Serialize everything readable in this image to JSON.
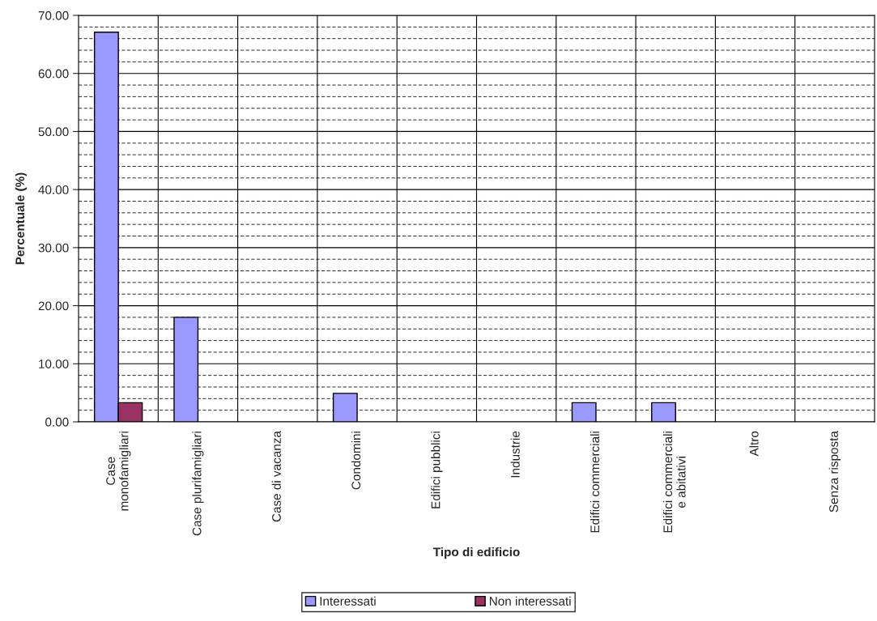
{
  "chart_data": {
    "type": "bar",
    "xlabel": "Tipo di edificio",
    "ylabel": "Percentuale (%)",
    "categories": [
      "Case\nmonofamigliari",
      "Case plurifamigliari",
      "Case di vacanza",
      "Condomini",
      "Edifici pubblici",
      "Industrie",
      "Edifici commerciali",
      "Edifici commerciali\ne abitativi",
      "Altro",
      "Senza risposta"
    ],
    "series": [
      {
        "name": "Interessati",
        "color": "#9999ff",
        "values": [
          67.1,
          18.0,
          null,
          4.9,
          null,
          null,
          3.3,
          3.3,
          null,
          null
        ]
      },
      {
        "name": "Non interessati",
        "color": "#993366",
        "values": [
          3.3,
          null,
          null,
          null,
          null,
          null,
          null,
          null,
          null,
          null
        ]
      }
    ],
    "ylim": [
      0,
      70
    ],
    "yticks": [
      {
        "value": 0,
        "label": "0.00"
      },
      {
        "value": 10,
        "label": "10.00"
      },
      {
        "value": 20,
        "label": "20.00"
      },
      {
        "value": 30,
        "label": "30.00"
      },
      {
        "value": 40,
        "label": "40.00"
      },
      {
        "value": 50,
        "label": "50.00"
      },
      {
        "value": 60,
        "label": "60.00"
      },
      {
        "value": 70,
        "label": "70.00"
      }
    ],
    "grid": true,
    "legend": "bottom"
  }
}
